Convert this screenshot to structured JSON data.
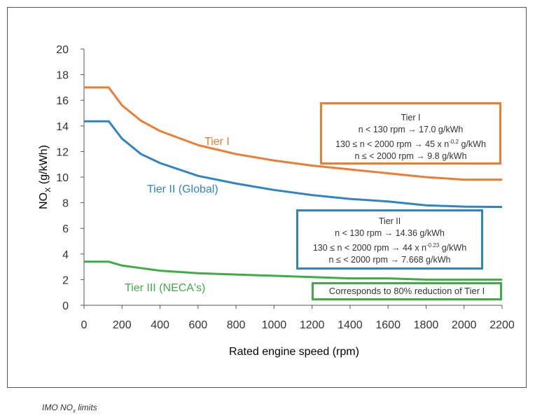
{
  "chart_data": {
    "type": "line",
    "xlabel": "Rated engine speed (rpm)",
    "ylabel_main": "NO",
    "ylabel_sub": "X",
    "ylabel_rest": " (g/kWh)",
    "xlim": [
      0,
      2200
    ],
    "ylim": [
      0,
      20
    ],
    "xticks": [
      0,
      200,
      400,
      600,
      800,
      1000,
      1200,
      1400,
      1600,
      1800,
      2000,
      2200
    ],
    "yticks": [
      0,
      2,
      4,
      6,
      8,
      10,
      12,
      14,
      16,
      18,
      20
    ],
    "grid": false,
    "x": [
      0,
      130,
      200,
      300,
      400,
      600,
      800,
      1000,
      1200,
      1400,
      1600,
      1800,
      2000,
      2200
    ],
    "series": [
      {
        "name": "Tier I",
        "color": "#ee7d31",
        "values": [
          17.0,
          17.0,
          15.6,
          14.4,
          13.6,
          12.5,
          11.8,
          11.3,
          10.9,
          10.6,
          10.3,
          10.0,
          9.8,
          9.8
        ]
      },
      {
        "name": "Tier II (Global)",
        "color": "#2e86c1",
        "values": [
          14.36,
          14.36,
          13.0,
          11.8,
          11.1,
          10.1,
          9.5,
          9.0,
          8.6,
          8.3,
          8.1,
          7.8,
          7.7,
          7.668
        ]
      },
      {
        "name": "Tier III (NECA's)",
        "color": "#3fad46",
        "values": [
          3.4,
          3.4,
          3.1,
          2.9,
          2.7,
          2.5,
          2.4,
          2.3,
          2.2,
          2.1,
          2.1,
          2.0,
          2.0,
          2.0
        ]
      }
    ],
    "annotations": {
      "tier1": {
        "title": "Tier I",
        "l1": "n < 130 rpm → 17.0 g/kWh",
        "l2a": "130 ≤ n < 2000 rpm → 45 x n",
        "l2sup": "-0.2",
        "l2b": " g/kWh",
        "l3": "n ≤ < 2000 rpm → 9.8 g/kWh"
      },
      "tier2": {
        "title": "Tier II",
        "l1": "n < 130 rpm → 14.36 g/kWh",
        "l2a": "130 ≤ n < 2000 rpm → 44 x n",
        "l2sup": "-0.23",
        "l2b": " g/kWh",
        "l3": "n ≤ < 2000 rpm → 7.668 g/kWh"
      },
      "tier3": "Corresponds to 80% reduction of Tier I"
    }
  },
  "caption": {
    "main": "IMO NO",
    "sub": "x",
    "rest": " limits"
  }
}
